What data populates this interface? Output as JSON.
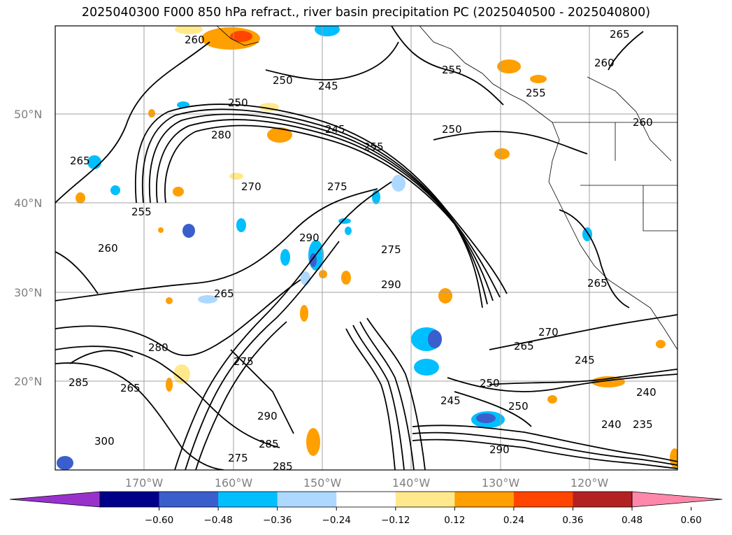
{
  "title": "2025040300 F000 850 hPa refract., river basin precipitation PC (2025040500 - 2025040800)",
  "map": {
    "lat_labels": [
      "50°N",
      "40°N",
      "30°N",
      "20°N"
    ],
    "lon_labels": [
      "170°W",
      "160°W",
      "150°W",
      "140°W",
      "130°W",
      "120°W"
    ],
    "contour_labels": [
      "260",
      "265",
      "250",
      "245",
      "255",
      "260",
      "255",
      "250",
      "280",
      "245",
      "255",
      "265",
      "250",
      "270",
      "275",
      "260",
      "255",
      "290",
      "275",
      "265",
      "290",
      "280",
      "275",
      "285",
      "265",
      "270",
      "265",
      "245",
      "250",
      "245",
      "300",
      "290",
      "285",
      "275",
      "285",
      "240",
      "235",
      "240",
      "250",
      "260",
      "290",
      "265"
    ]
  },
  "colorbar": {
    "ticks": [
      "−0.60",
      "−0.48",
      "−0.36",
      "−0.24",
      "−0.12",
      "0.12",
      "0.24",
      "0.36",
      "0.48",
      "0.60"
    ],
    "colors": [
      "#9932cc",
      "#00008b",
      "#3a5fcd",
      "#00bfff",
      "#add8ff",
      "#ffffff",
      "#ffe98c",
      "#ff9f00",
      "#ff4500",
      "#b22222",
      "#ff88aa"
    ]
  }
}
